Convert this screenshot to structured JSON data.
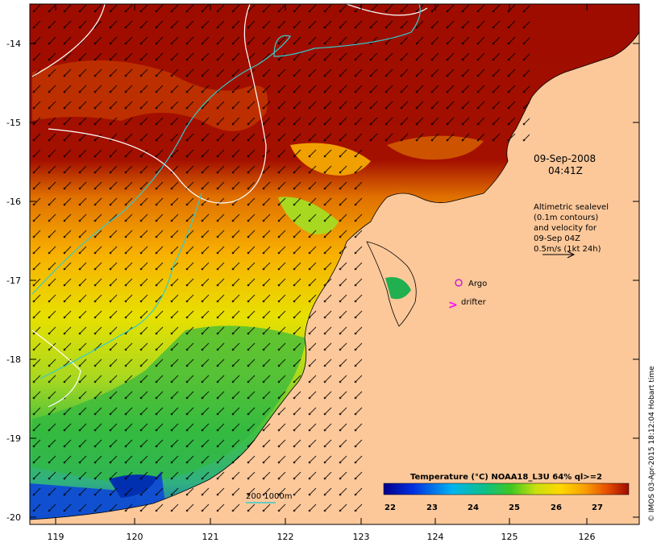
{
  "map": {
    "lat_ticks": [
      "-14",
      "-15",
      "-16",
      "-17",
      "-18",
      "-19",
      "-20"
    ],
    "lon_ticks": [
      "119",
      "120",
      "121",
      "122",
      "123",
      "124",
      "125",
      "126"
    ],
    "date": "09-Sep-2008",
    "time": "04:41Z",
    "info_lines": [
      "Altimetric sealevel",
      "(0.1m contours)",
      "and velocity for",
      "09-Sep 04Z",
      "0.5m/s (1kt 24h)"
    ],
    "legend_argo": "Argo",
    "legend_drifter": "drifter",
    "bathy_label": "200  1000m",
    "credit": "© IMOS 03-Apr-2015 18:12:04 Hobart time",
    "colorbar": {
      "title": "Temperature (°C) NOAA18_L3U 64% ql>=2",
      "ticks": [
        "22",
        "23",
        "24",
        "25",
        "26",
        "27"
      ]
    },
    "colors": {
      "land": "#fcc89a",
      "ocean_hot": "#9e0c00",
      "argo_marker": "#cc22cc",
      "drifter_marker": "#ff00ff",
      "bathy_line": "#33cccc"
    }
  }
}
